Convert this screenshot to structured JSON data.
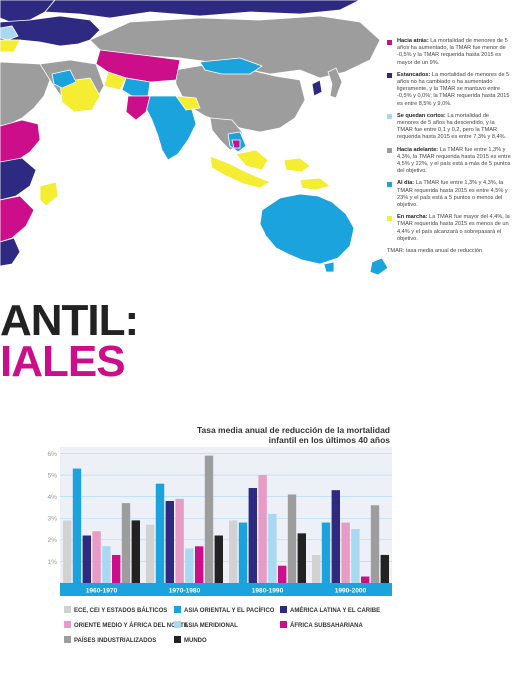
{
  "headline": {
    "line1": "ANTIL:",
    "line2": "IALES"
  },
  "legend": {
    "items": [
      {
        "name": "Hacia atrás:",
        "text": "La mortalidad de menores de 5 años ha aumentado, la TMAR fue menor de -0,5% y la TMAR requerida hasta 2015 es mayor de un 9%.",
        "color": "#cc0e8b"
      },
      {
        "name": "Estancados:",
        "text": "La mortalidad de menores de 5 años no ha cambiado o ha aumentado ligeramente, y la TMAR se mantuvo entre -0,5% y 0,0%; la TMAR requerida hasta 2015 es entre 8,5% y 9,0%.",
        "color": "#2e2a82"
      },
      {
        "name": "Se quedan cortos:",
        "text": "La mortalidad de menores de 5 años ha descendido, y la TMAR fue entre 0,1 y 0,2, pero la TMAR requerida hasta 2015 es entre 7,3% y 8,4%.",
        "color": "#a9d9f2"
      },
      {
        "name": "Hacia adelante:",
        "text": "La TMAR fue entre 1,3% y 4,3%, la TMAR requerida hasta 2015 es entre 4,5% y 22%, y el país está a más de 5 puntos del objetivo.",
        "color": "#9d9d9d"
      },
      {
        "name": "Al día:",
        "text": "La TMAR fue entre 1,3% y 4,3%, la TMAR requerida hasta 2015 es entre 4,5% y 23% y el país está a 5 puntos o menos del objetivo.",
        "color": "#1aa3dc"
      },
      {
        "name": "En marcha:",
        "text": "La TMAR fue mayor del 4,4%, la TMAR requerida hasta 2015 es menos de un 4,4% y el país alcanzará o sobrepasará el objetivo.",
        "color": "#f5ed32"
      }
    ],
    "note": "TMAR: tasa media anual de reducción"
  },
  "chart_data": {
    "type": "bar",
    "title": "Tasa media anual de reducción de la mortalidad infantil en los últimos 40 años",
    "categories": [
      "1960-1970",
      "1970-1980",
      "1980-1990",
      "1990-2000"
    ],
    "tick_labels": [
      "1%",
      "2%",
      "3%",
      "4%",
      "5%",
      "6%"
    ],
    "ylim": [
      0,
      6.3
    ],
    "grid": true,
    "legend_position": "bottom",
    "series": [
      {
        "name": "ECE, CEI Y ESTADOS BÁLTICOS",
        "color": "#d2d2d2",
        "values": [
          2.9,
          2.7,
          2.9,
          1.3
        ]
      },
      {
        "name": "ASIA ORIENTAL Y EL PACÍFICO",
        "color": "#1aa3dc",
        "values": [
          5.3,
          4.6,
          2.8,
          2.8
        ]
      },
      {
        "name": "AMÉRICA LATINA Y EL CARIBE",
        "color": "#2e2a82",
        "values": [
          2.2,
          3.8,
          4.4,
          4.3
        ]
      },
      {
        "name": "ORIENTE MEDIO Y ÁFRICA DEL NORTE",
        "color": "#e89bc4",
        "values": [
          2.4,
          3.9,
          5.0,
          2.8
        ]
      },
      {
        "name": "ASIA MERIDIONAL",
        "color": "#a9d9f2",
        "values": [
          1.7,
          1.6,
          3.2,
          2.5
        ]
      },
      {
        "name": "ÁFRICA SUBSAHARIANA",
        "color": "#cc0e8b",
        "values": [
          1.3,
          1.7,
          0.8,
          0.3
        ]
      },
      {
        "name": "PAÍSES INDUSTRIALIZADOS",
        "color": "#9d9d9d",
        "values": [
          3.7,
          5.9,
          4.1,
          3.6
        ]
      },
      {
        "name": "MUNDO",
        "color": "#222222",
        "values": [
          2.9,
          2.2,
          2.3,
          1.3
        ]
      }
    ]
  }
}
